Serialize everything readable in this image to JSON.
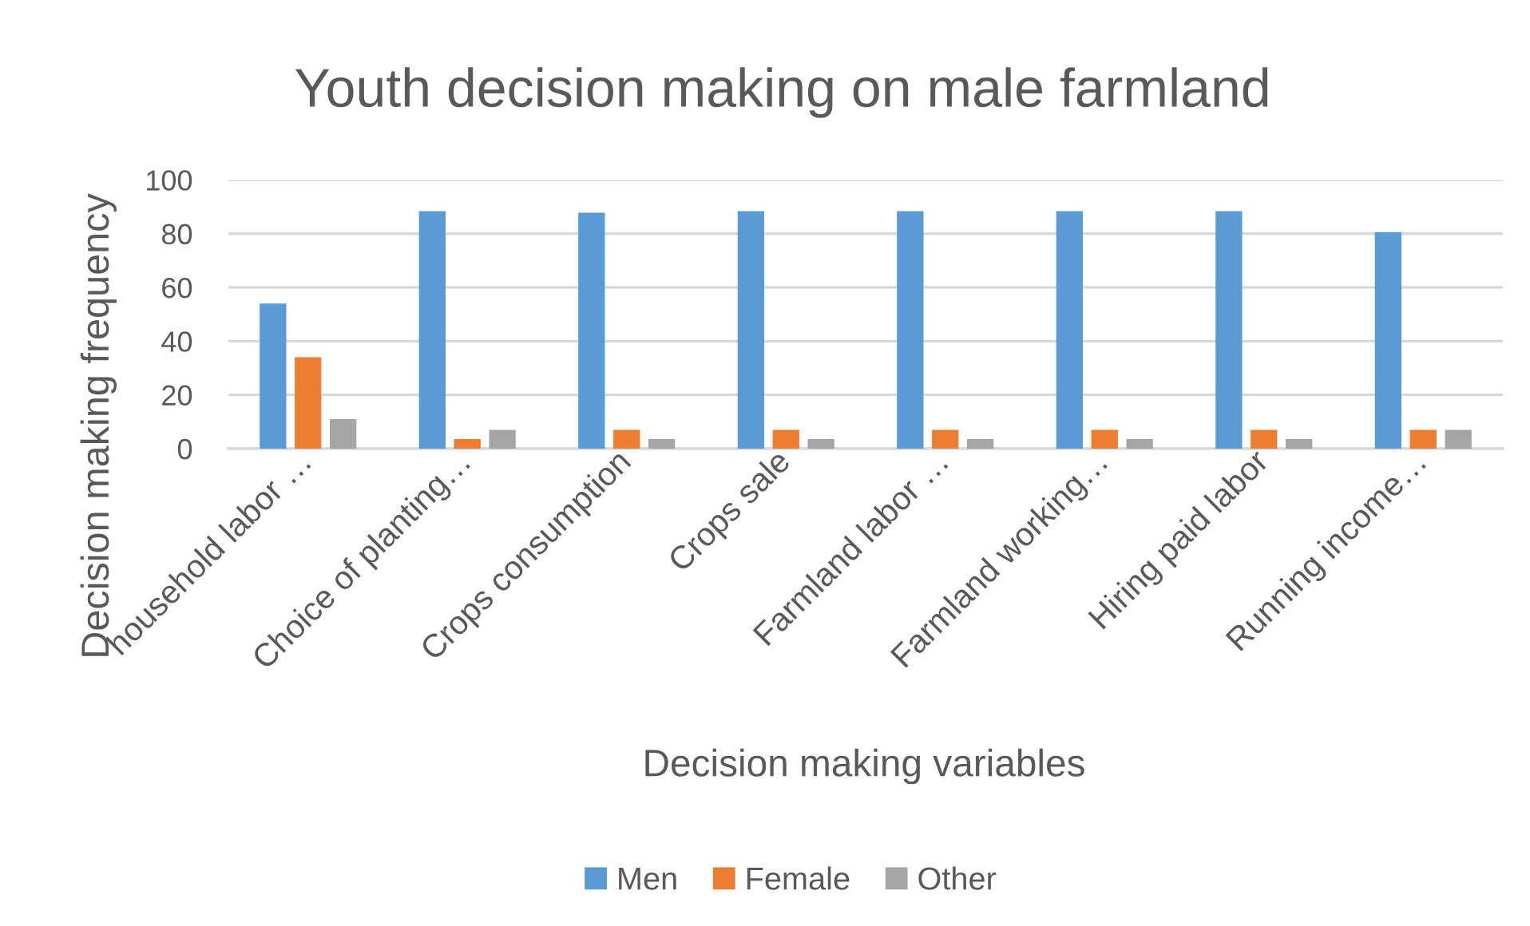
{
  "chart_data": {
    "type": "bar",
    "title": "Youth decision making on male farmland",
    "xlabel": "Decision making variables",
    "ylabel": "Decision making frequency",
    "categories": [
      "household labor …",
      "Choice of planting…",
      "Crops consumption",
      "Crops sale",
      "Farmland labor …",
      "Farmland working…",
      "Hiring paid labor",
      "Running income…"
    ],
    "series": [
      {
        "name": "Men",
        "color": "#5b9bd5",
        "values": [
          54,
          88.4,
          87.8,
          88.4,
          88.4,
          88.4,
          88.4,
          80.6
        ]
      },
      {
        "name": "Female",
        "color": "#ed7d31",
        "values": [
          34,
          3.6,
          7,
          7,
          7,
          7,
          7,
          7
        ]
      },
      {
        "name": "Other",
        "color": "#a5a5a5",
        "values": [
          11,
          7,
          3.6,
          3.6,
          3.6,
          3.6,
          3.6,
          7
        ]
      }
    ],
    "ylim": [
      0,
      100
    ],
    "yticks": [
      0,
      20,
      40,
      60,
      80,
      100
    ],
    "grid": "y",
    "legend": "bottom"
  }
}
